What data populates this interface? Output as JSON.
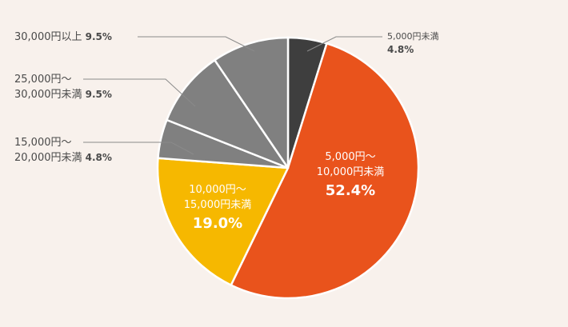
{
  "chart_data": {
    "type": "pie",
    "start_angle_deg": 0,
    "direction": "clockwise",
    "slices": [
      {
        "label": "5,000円未満",
        "value": 4.8,
        "display": "4.8%",
        "color": "#3e3e3e"
      },
      {
        "label_line1": "5,000円〜",
        "label_line2": "10,000円未満",
        "value": 52.4,
        "display": "52.4%",
        "color": "#e9531c"
      },
      {
        "label_line1": "10,000円〜",
        "label_line2": "15,000円未満",
        "value": 19.0,
        "display": "19.0%",
        "color": "#f6b800"
      },
      {
        "label_line1": "15,000円〜",
        "label_line2": "20,000円未満",
        "value": 4.8,
        "display": "4.8%",
        "color": "#808080"
      },
      {
        "label_line1": "25,000円〜",
        "label_line2": "30,000円未満",
        "value": 9.5,
        "display": "9.5%",
        "color": "#808080"
      },
      {
        "label": "30,000円以上",
        "value": 9.5,
        "display": "9.5%",
        "color": "#808080"
      }
    ]
  }
}
